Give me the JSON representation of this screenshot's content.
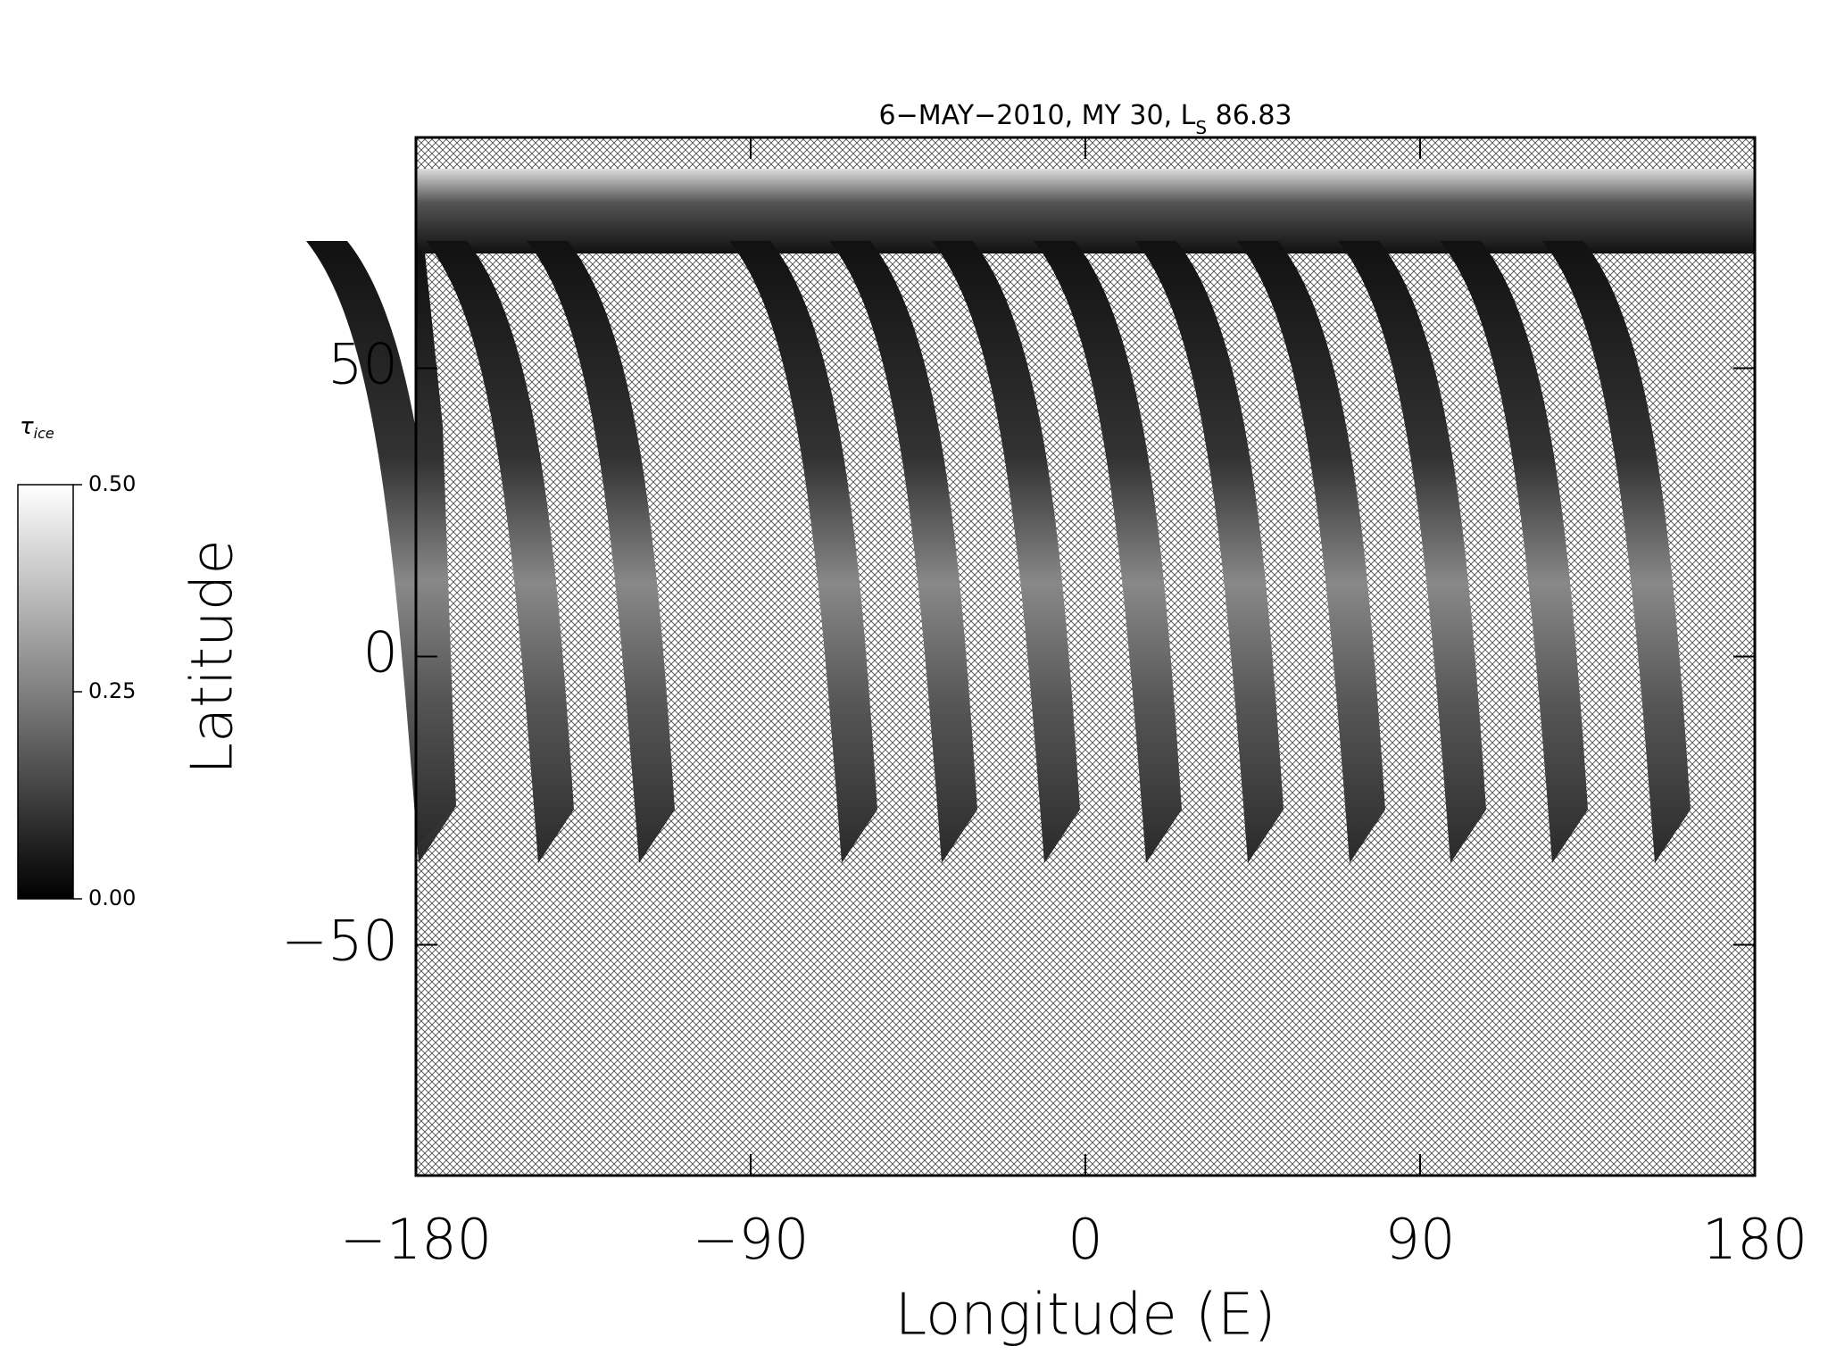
{
  "chart_data": {
    "type": "map",
    "title": {
      "text": "6−MAY−2010, MY 30,  L",
      "subscript": "S",
      "tail": " 86.83"
    },
    "xlabel": "Longitude (E)",
    "ylabel": "Latitude",
    "xlim": [
      -180,
      180
    ],
    "ylim": [
      -90,
      90
    ],
    "xticks": [
      {
        "value": -180,
        "label": "−180"
      },
      {
        "value": -90,
        "label": "−90"
      },
      0,
      90,
      180
    ],
    "yticks": [
      {
        "value": -50,
        "label": "−50"
      },
      0,
      50
    ],
    "colorbar": {
      "label": "τ",
      "label_subscript": "ice",
      "lim": [
        0,
        0.5
      ],
      "ticks": [
        {
          "value": 0,
          "label": "0.00"
        },
        {
          "value": 0.25,
          "label": "0.25"
        },
        {
          "value": 0.5,
          "label": "0.50"
        }
      ]
    }
  }
}
